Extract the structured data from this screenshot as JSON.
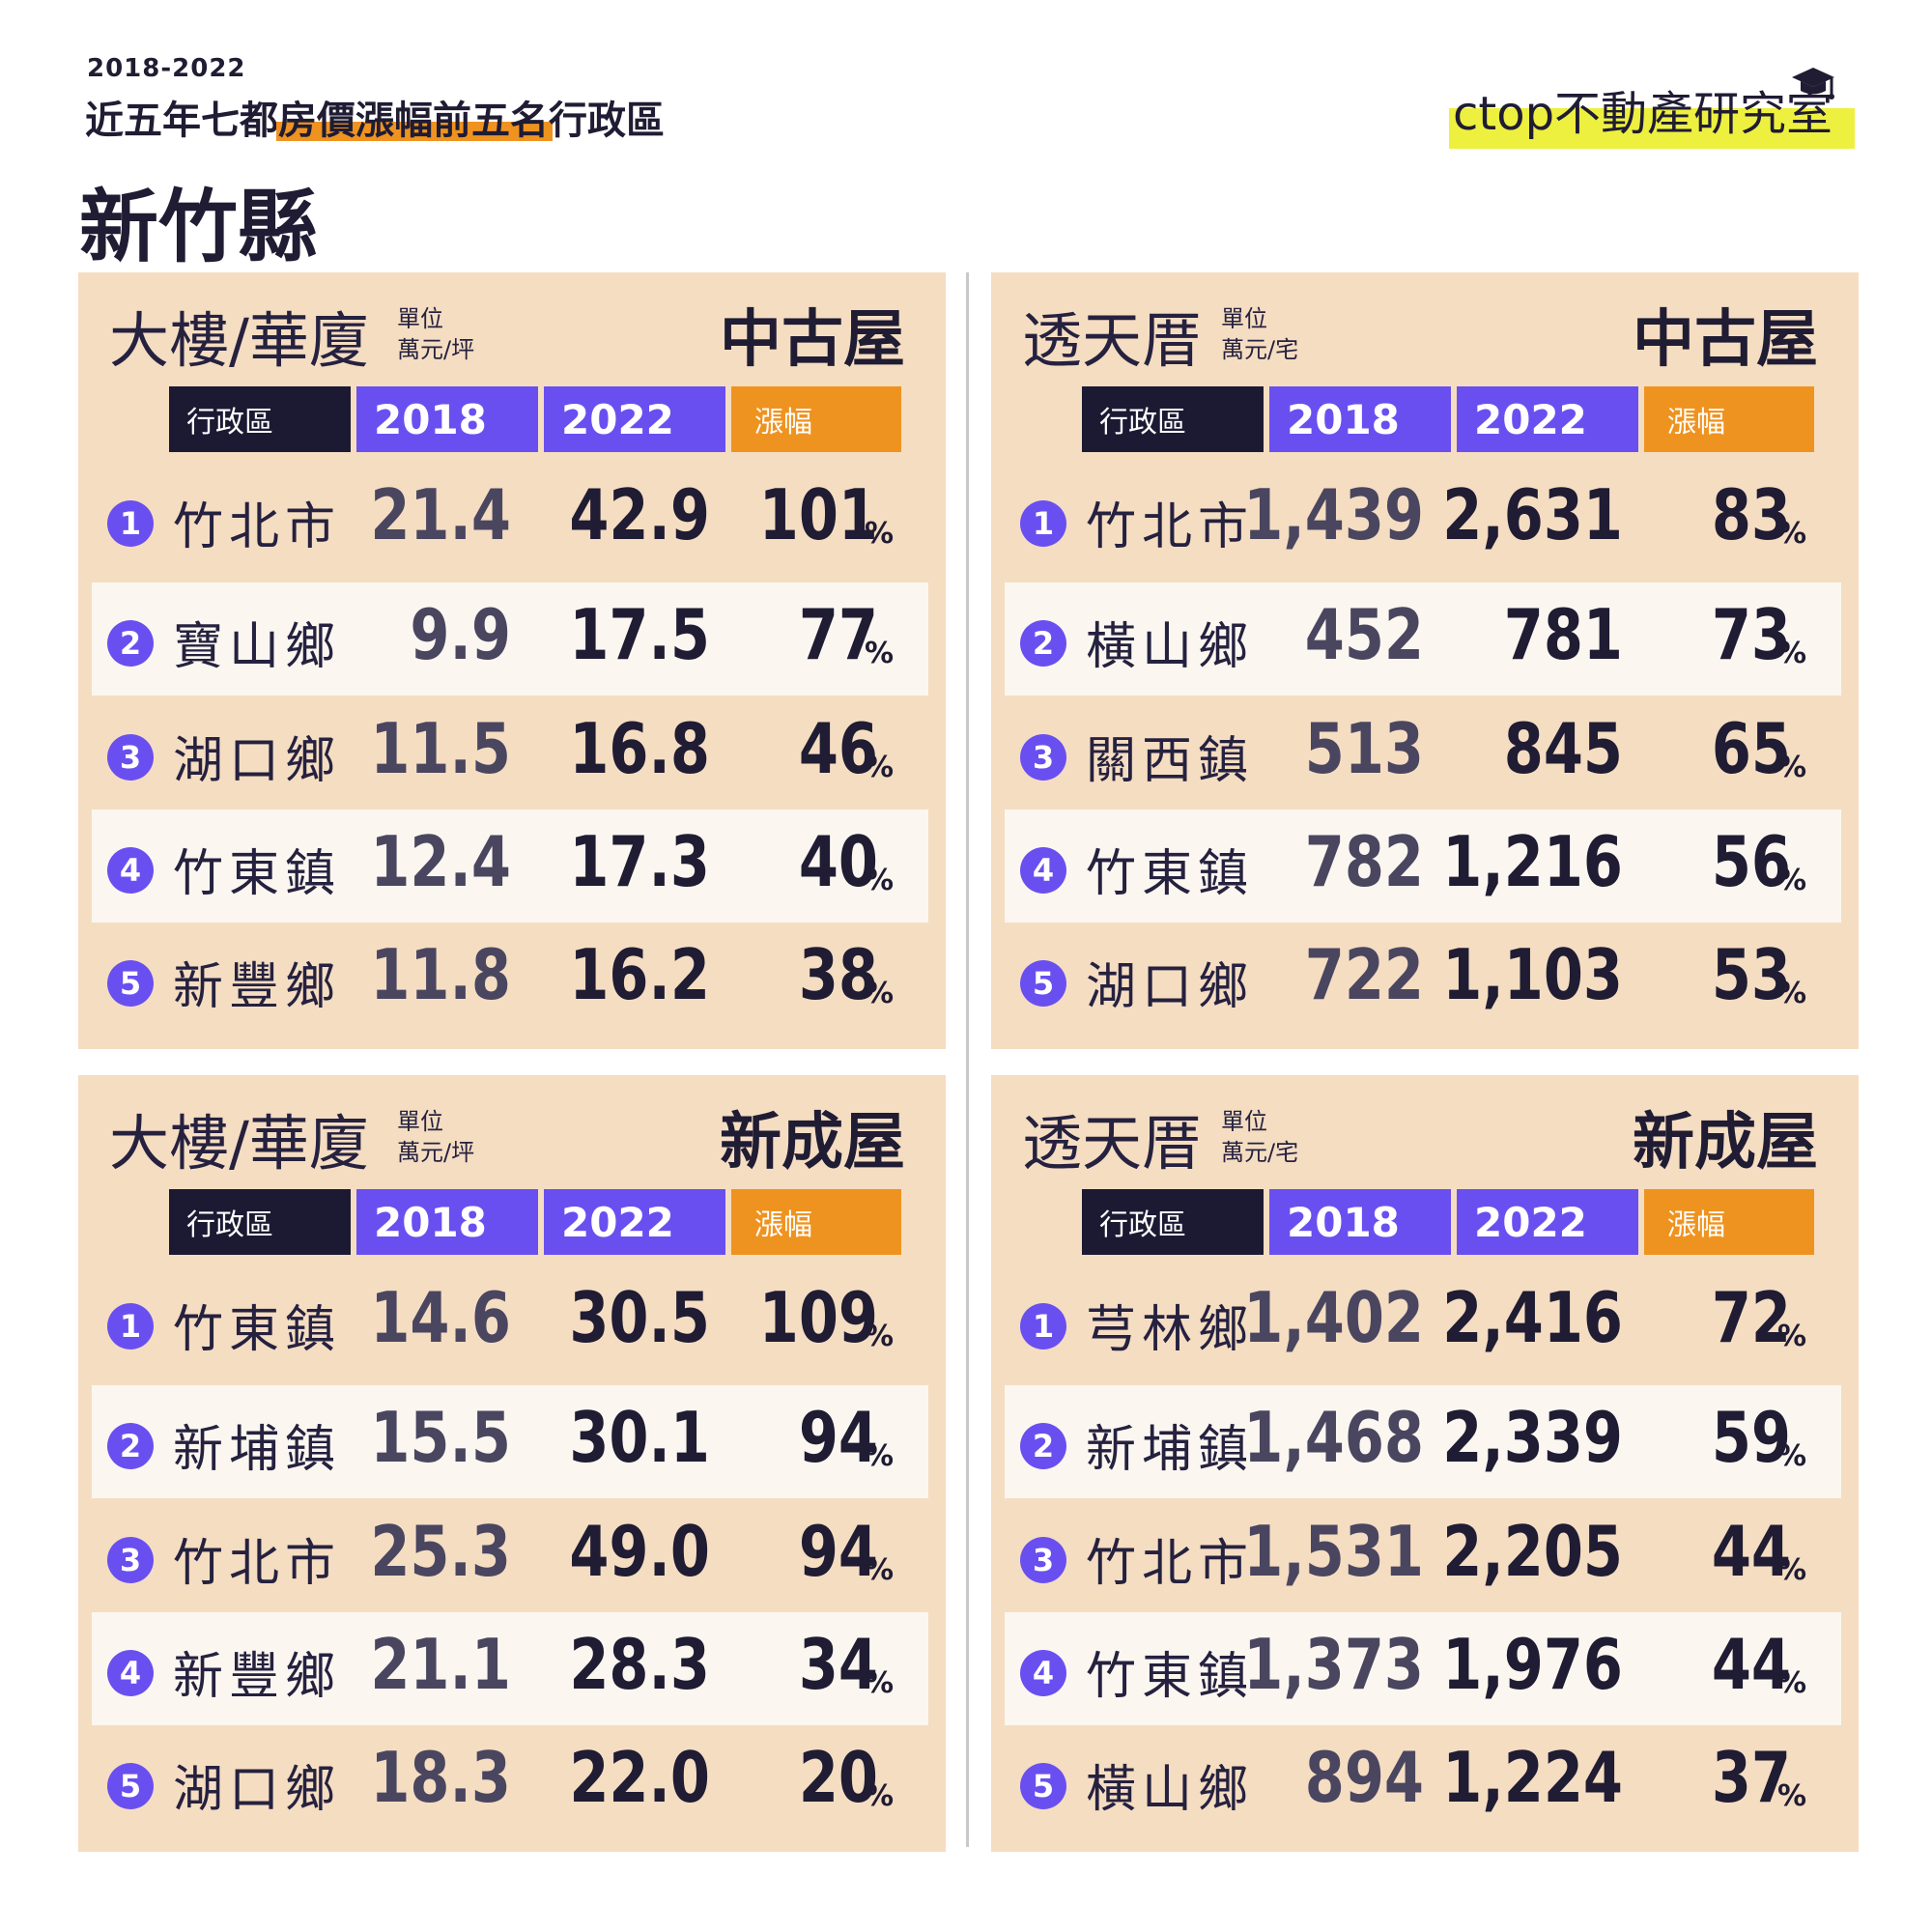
{
  "header": {
    "years": "2018-2022",
    "subtitle_a": "近五年七都",
    "subtitle_hl": "房價漲幅前五名",
    "subtitle_b": "行政區",
    "county": "新竹縣"
  },
  "logo": {
    "c": "c",
    "text": "top不動產研究室"
  },
  "colors": {
    "panel": "#f5ddc2",
    "purple": "#6a4ff0",
    "orange": "#ef9320",
    "navy": "#1c1a33",
    "logo_yellow": "#eef03f"
  },
  "percent_sign": "%",
  "panels": [
    {
      "title": "大樓/華廈",
      "unit_label": "單位",
      "unit": "萬元/坪",
      "type": "中古屋",
      "headers": [
        "行政區",
        "2018",
        "2022",
        "漲幅"
      ],
      "rows": [
        {
          "rank": "1",
          "name": "竹北市",
          "v2018": "21.4",
          "v2022": "42.9",
          "pct": "101"
        },
        {
          "rank": "2",
          "name": "寶山鄉",
          "v2018": "9.9",
          "v2022": "17.5",
          "pct": "77"
        },
        {
          "rank": "3",
          "name": "湖口鄉",
          "v2018": "11.5",
          "v2022": "16.8",
          "pct": "46"
        },
        {
          "rank": "4",
          "name": "竹東鎮",
          "v2018": "12.4",
          "v2022": "17.3",
          "pct": "40"
        },
        {
          "rank": "5",
          "name": "新豐鄉",
          "v2018": "11.8",
          "v2022": "16.2",
          "pct": "38"
        }
      ]
    },
    {
      "title": "透天厝",
      "unit_label": "單位",
      "unit": "萬元/宅",
      "type": "中古屋",
      "headers": [
        "行政區",
        "2018",
        "2022",
        "漲幅"
      ],
      "rows": [
        {
          "rank": "1",
          "name": "竹北市",
          "v2018": "1,439",
          "v2022": "2,631",
          "pct": "83"
        },
        {
          "rank": "2",
          "name": "橫山鄉",
          "v2018": "452",
          "v2022": "781",
          "pct": "73"
        },
        {
          "rank": "3",
          "name": "關西鎮",
          "v2018": "513",
          "v2022": "845",
          "pct": "65"
        },
        {
          "rank": "4",
          "name": "竹東鎮",
          "v2018": "782",
          "v2022": "1,216",
          "pct": "56"
        },
        {
          "rank": "5",
          "name": "湖口鄉",
          "v2018": "722",
          "v2022": "1,103",
          "pct": "53"
        }
      ]
    },
    {
      "title": "大樓/華廈",
      "unit_label": "單位",
      "unit": "萬元/坪",
      "type": "新成屋",
      "headers": [
        "行政區",
        "2018",
        "2022",
        "漲幅"
      ],
      "rows": [
        {
          "rank": "1",
          "name": "竹東鎮",
          "v2018": "14.6",
          "v2022": "30.5",
          "pct": "109"
        },
        {
          "rank": "2",
          "name": "新埔鎮",
          "v2018": "15.5",
          "v2022": "30.1",
          "pct": "94"
        },
        {
          "rank": "3",
          "name": "竹北市",
          "v2018": "25.3",
          "v2022": "49.0",
          "pct": "94"
        },
        {
          "rank": "4",
          "name": "新豐鄉",
          "v2018": "21.1",
          "v2022": "28.3",
          "pct": "34"
        },
        {
          "rank": "5",
          "name": "湖口鄉",
          "v2018": "18.3",
          "v2022": "22.0",
          "pct": "20"
        }
      ]
    },
    {
      "title": "透天厝",
      "unit_label": "單位",
      "unit": "萬元/宅",
      "type": "新成屋",
      "headers": [
        "行政區",
        "2018",
        "2022",
        "漲幅"
      ],
      "rows": [
        {
          "rank": "1",
          "name": "芎林鄉",
          "v2018": "1,402",
          "v2022": "2,416",
          "pct": "72"
        },
        {
          "rank": "2",
          "name": "新埔鎮",
          "v2018": "1,468",
          "v2022": "2,339",
          "pct": "59"
        },
        {
          "rank": "3",
          "name": "竹北市",
          "v2018": "1,531",
          "v2022": "2,205",
          "pct": "44"
        },
        {
          "rank": "4",
          "name": "竹東鎮",
          "v2018": "1,373",
          "v2022": "1,976",
          "pct": "44"
        },
        {
          "rank": "5",
          "name": "橫山鄉",
          "v2018": "894",
          "v2022": "1,224",
          "pct": "37"
        }
      ]
    }
  ]
}
